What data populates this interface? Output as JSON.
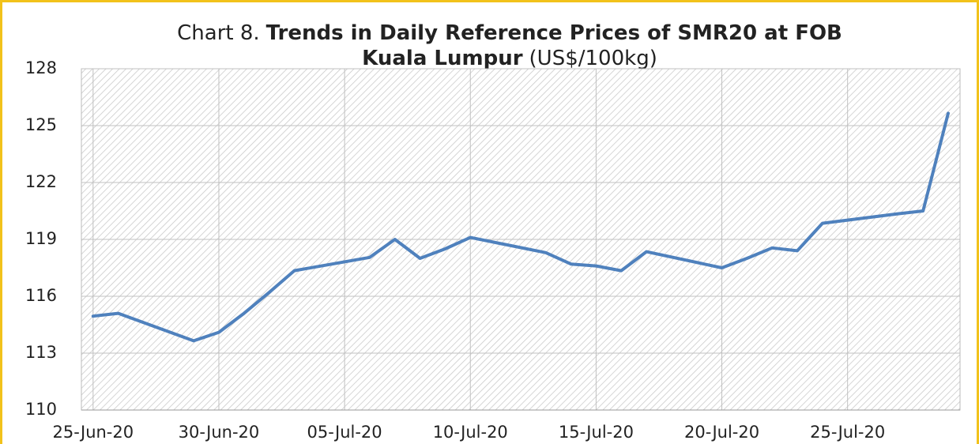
{
  "chart_data": {
    "type": "line",
    "title": [
      "Chart 8.",
      "Trends in Daily Reference Prices of SMR20 at FOB",
      "Kuala Lumpur",
      "(US$/100kg)"
    ],
    "x": [
      "2020-06-25",
      "2020-06-26",
      "2020-06-29",
      "2020-06-30",
      "2020-07-01",
      "2020-07-02",
      "2020-07-03",
      "2020-07-06",
      "2020-07-07",
      "2020-07-08",
      "2020-07-09",
      "2020-07-10",
      "2020-07-13",
      "2020-07-14",
      "2020-07-15",
      "2020-07-16",
      "2020-07-17",
      "2020-07-20",
      "2020-07-21",
      "2020-07-22",
      "2020-07-23",
      "2020-07-24",
      "2020-07-27",
      "2020-07-28",
      "2020-07-29"
    ],
    "series": [
      {
        "name": "SMR20",
        "color": "#4f81bd",
        "values": [
          114.95,
          115.1,
          113.65,
          114.1,
          115.1,
          116.2,
          117.35,
          118.05,
          119.0,
          118.0,
          118.5,
          119.1,
          118.3,
          117.7,
          117.6,
          117.35,
          118.35,
          117.5,
          118.0,
          118.55,
          118.4,
          119.85,
          120.35,
          120.5,
          125.65
        ]
      }
    ],
    "xlim": [
      "2020-06-24",
      "2020-07-29"
    ],
    "xticks": [
      {
        "value": "2020-06-25",
        "label": "25-Jun-20"
      },
      {
        "value": "2020-06-30",
        "label": "30-Jun-20"
      },
      {
        "value": "2020-07-05",
        "label": "05-Jul-20"
      },
      {
        "value": "2020-07-10",
        "label": "10-Jul-20"
      },
      {
        "value": "2020-07-15",
        "label": "15-Jul-20"
      },
      {
        "value": "2020-07-20",
        "label": "20-Jul-20"
      },
      {
        "value": "2020-07-25",
        "label": "25-Jul-20"
      }
    ],
    "ylim": [
      110,
      128
    ],
    "yticks": [
      110,
      113,
      116,
      119,
      122,
      125,
      128
    ],
    "grid": true
  }
}
